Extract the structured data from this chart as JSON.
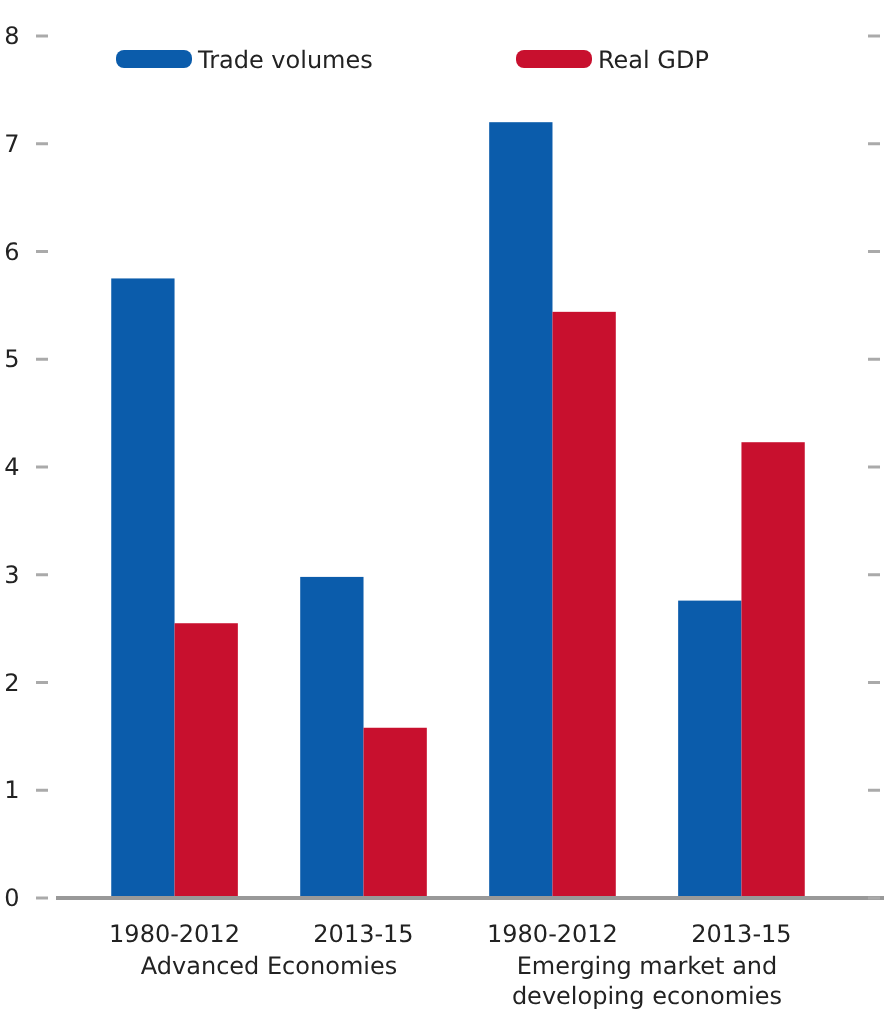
{
  "chart_data": {
    "type": "bar",
    "categories": [
      "1980-2012",
      "2013-15",
      "1980-2012",
      "2013-15"
    ],
    "series": [
      {
        "name": "Trade volumes",
        "color": "#0b5cab",
        "values": [
          5.75,
          2.98,
          7.2,
          2.76
        ]
      },
      {
        "name": "Real GDP",
        "color": "#c8102e",
        "values": [
          2.55,
          1.58,
          5.44,
          4.23
        ]
      }
    ],
    "ylim": [
      0,
      8
    ],
    "yticks": [
      0,
      1,
      2,
      3,
      4,
      5,
      6,
      7,
      8
    ],
    "grid": false,
    "legend": "top",
    "annotations": [
      "Advanced Economies",
      "Emerging market and developing economies"
    ]
  }
}
